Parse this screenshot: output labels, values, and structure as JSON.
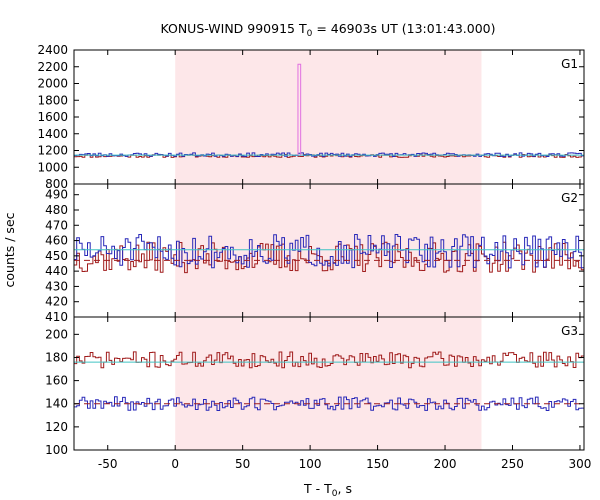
{
  "chart_data": {
    "type": "line",
    "title": "KONUS-WIND 990915 T₀ = 46903s UT (13:01:43.000)",
    "title_main": "KONUS-WIND 990915 T",
    "title_sub": "0",
    "title_rest": " = 46903s UT (13:01:43.000)",
    "xlabel_main": "T - T",
    "xlabel_sub": "0",
    "xlabel_rest": ", s",
    "ylabel": "counts / sec",
    "xlim": [
      -75,
      303
    ],
    "xticks": [
      -50,
      0,
      50,
      100,
      150,
      200,
      250,
      300
    ],
    "shaded_interval": [
      0,
      227
    ],
    "shaded_color": "#fde7e9",
    "colors": {
      "high": "#a01c1c",
      "low": "#2828b8",
      "bg": "#40c4c4",
      "spike": "#e070e0"
    },
    "panels": [
      {
        "label": "G1",
        "ylim": [
          800,
          2400
        ],
        "yticks": [
          800,
          1000,
          1200,
          1400,
          1600,
          1800,
          2000,
          2200,
          2400
        ],
        "series": [
          {
            "mean": 1135,
            "amp": 18,
            "seed": 11
          },
          {
            "mean": 1150,
            "amp": 22,
            "seed": 23
          }
        ],
        "background_level": 1145,
        "spike": {
          "x0": 91,
          "x1": 93,
          "value": 2230
        }
      },
      {
        "label": "G2",
        "ylim": [
          410,
          497
        ],
        "yticks": [
          410,
          420,
          430,
          440,
          450,
          460,
          470,
          480,
          490
        ],
        "series": [
          {
            "mean": 449,
            "amp": 10,
            "seed": 37
          },
          {
            "mean": 453,
            "amp": 11,
            "seed": 51
          }
        ],
        "background_level": 454,
        "background_level2": 447
      },
      {
        "label": "G3",
        "ylim": [
          100,
          215
        ],
        "yticks": [
          100,
          120,
          140,
          160,
          180,
          200
        ],
        "series": [
          {
            "mean": 178,
            "amp": 7,
            "seed": 71
          },
          {
            "mean": 140,
            "amp": 6,
            "seed": 89
          }
        ],
        "background_level": 176,
        "background_level2": 140
      }
    ]
  }
}
